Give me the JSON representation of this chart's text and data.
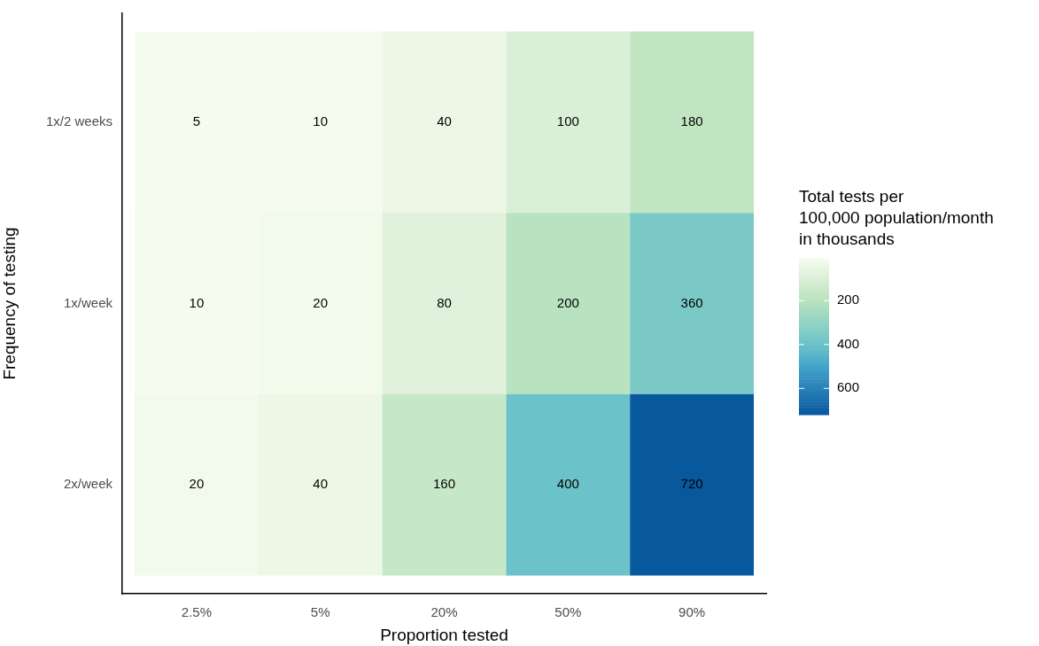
{
  "chart_data": {
    "type": "heatmap",
    "xlabel": "Proportion tested",
    "ylabel": "Frequency of testing",
    "legend_title": "Total tests per\n100,000 population/month\nin thousands",
    "categories": [
      "2.5%",
      "5%",
      "20%",
      "50%",
      "90%"
    ],
    "y_categories": [
      "1x/2 weeks",
      "1x/week",
      "2x/week"
    ],
    "cells": [
      [
        5,
        10,
        40,
        100,
        180
      ],
      [
        10,
        20,
        80,
        200,
        360
      ],
      [
        20,
        40,
        160,
        400,
        720
      ]
    ],
    "clim": [
      5,
      720
    ],
    "cticks": [
      200,
      400,
      600
    ],
    "data_labels": true
  }
}
